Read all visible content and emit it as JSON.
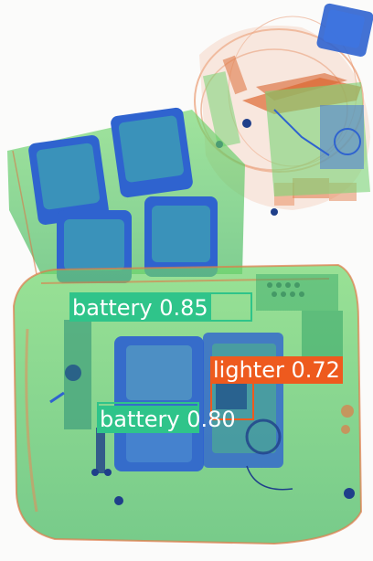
{
  "detections": [
    {
      "label": "battery 0.85",
      "color": "#2fc48a"
    },
    {
      "label": "lighter 0.72",
      "color": "#ee5a1e"
    },
    {
      "label": "battery 0.80",
      "color": "#2fc48a"
    }
  ],
  "palette": {
    "organic": "#e0703c",
    "inorganic": "#5cc85c",
    "metal": "#2f63cf",
    "background": "#fbfbfa"
  }
}
